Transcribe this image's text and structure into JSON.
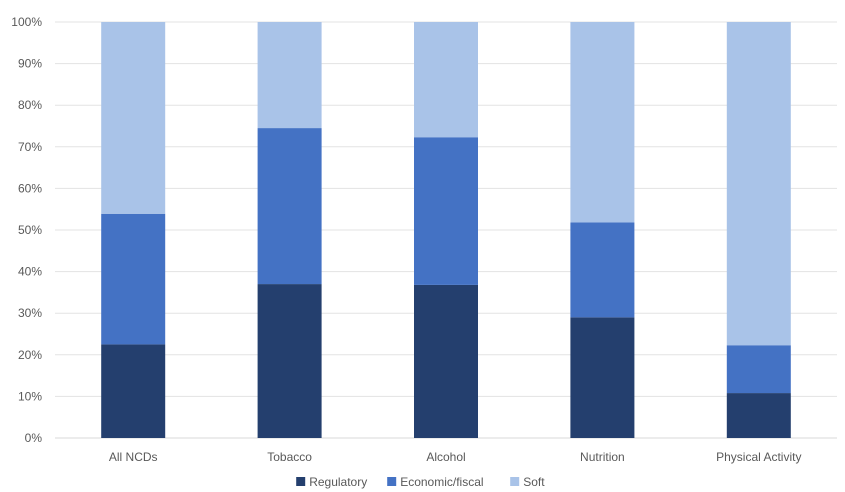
{
  "chart_data": {
    "type": "bar",
    "stacked": true,
    "title": "",
    "xlabel": "",
    "ylabel": "",
    "ylim": [
      0,
      100
    ],
    "y_ticks": [
      "0%",
      "10%",
      "20%",
      "30%",
      "40%",
      "50%",
      "60%",
      "70%",
      "80%",
      "90%",
      "100%"
    ],
    "grid": true,
    "legend_position": "bottom",
    "categories": [
      "All NCDs",
      "Tobacco",
      "Alcohol",
      "Nutrition",
      "Physical Activity"
    ],
    "series": [
      {
        "name": "Regulatory",
        "color": "#243F6E",
        "values": [
          22.5,
          37,
          36.8,
          29,
          10.8
        ]
      },
      {
        "name": "Economic/fiscal",
        "color": "#4472C4",
        "values": [
          31.4,
          37.5,
          35.5,
          22.8,
          11.5
        ]
      },
      {
        "name": "Soft",
        "color": "#A9C3E8",
        "values": [
          46.1,
          25.5,
          27.7,
          48.2,
          77.7
        ]
      }
    ]
  }
}
